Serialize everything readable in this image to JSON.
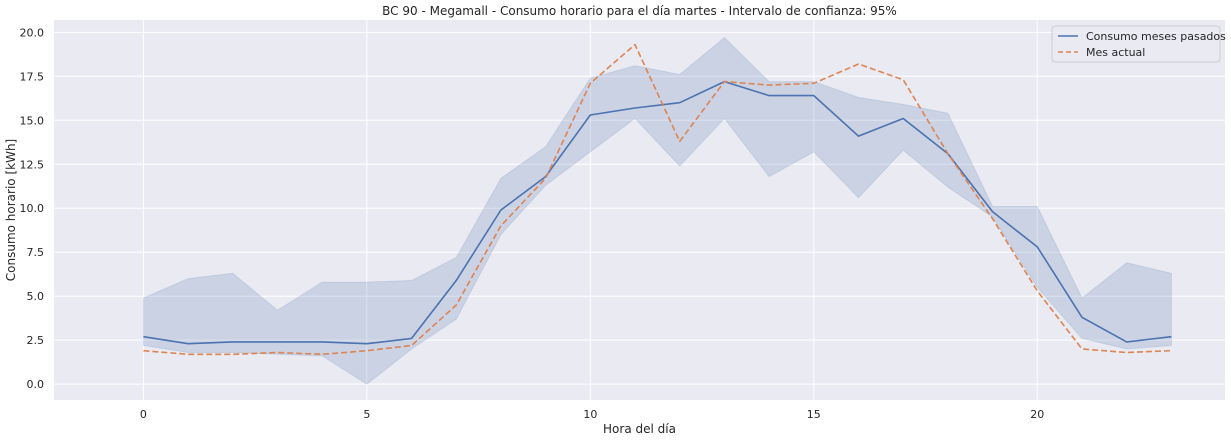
{
  "chart_data": {
    "type": "line",
    "title": "BC 90 - Megamall - Consumo horario para el día martes - Intervalo de confianza: 95%",
    "xlabel": "Hora del día",
    "ylabel": "Consumo horario [kWh]",
    "xlim": [
      -2,
      24.2
    ],
    "ylim": [
      -0.9,
      20.7
    ],
    "xticks": [
      0,
      5,
      10,
      15,
      20
    ],
    "xtick_labels": [
      "0",
      "5",
      "10",
      "15",
      "20"
    ],
    "yticks": [
      0.0,
      2.5,
      5.0,
      7.5,
      10.0,
      12.5,
      15.0,
      17.5,
      20.0
    ],
    "ytick_labels": [
      "0.0",
      "2.5",
      "5.0",
      "7.5",
      "10.0",
      "12.5",
      "15.0",
      "17.5",
      "20.0"
    ],
    "grid": true,
    "legend_position": "top-right",
    "x": [
      0,
      1,
      2,
      3,
      4,
      5,
      6,
      7,
      8,
      9,
      10,
      11,
      12,
      13,
      14,
      15,
      16,
      17,
      18,
      19,
      20,
      21,
      22,
      23
    ],
    "series": [
      {
        "name": "Consumo meses pasados",
        "color": "#4c72b0",
        "style": "solid",
        "values": [
          2.7,
          2.3,
          2.4,
          2.4,
          2.4,
          2.3,
          2.6,
          5.9,
          9.9,
          11.8,
          15.3,
          15.7,
          16.0,
          17.2,
          16.4,
          16.4,
          14.1,
          15.1,
          13.1,
          9.8,
          7.8,
          3.8,
          2.4,
          2.7
        ]
      },
      {
        "name": "Mes actual",
        "color": "#dd8452",
        "style": "dashed",
        "values": [
          1.9,
          1.7,
          1.7,
          1.8,
          1.7,
          1.9,
          2.2,
          4.5,
          9.0,
          11.7,
          17.1,
          19.3,
          13.8,
          17.2,
          17.0,
          17.1,
          18.2,
          17.3,
          13.1,
          9.4,
          5.3,
          2.0,
          1.8,
          1.9
        ]
      }
    ],
    "confidence_interval": {
      "level": "95%",
      "color": "#4c72b0",
      "upper": [
        4.9,
        6.0,
        6.3,
        4.2,
        5.8,
        5.8,
        5.9,
        7.2,
        11.7,
        13.5,
        17.4,
        18.1,
        17.6,
        19.7,
        17.2,
        17.2,
        16.3,
        15.9,
        15.4,
        10.1,
        10.1,
        4.9,
        6.9,
        6.3
      ],
      "lower": [
        2.2,
        1.8,
        1.8,
        1.7,
        1.6,
        0.0,
        2.0,
        3.7,
        8.5,
        11.3,
        13.2,
        15.1,
        12.4,
        15.1,
        11.8,
        13.2,
        10.6,
        13.3,
        11.2,
        9.5,
        5.5,
        2.6,
        2.0,
        2.2
      ]
    }
  }
}
